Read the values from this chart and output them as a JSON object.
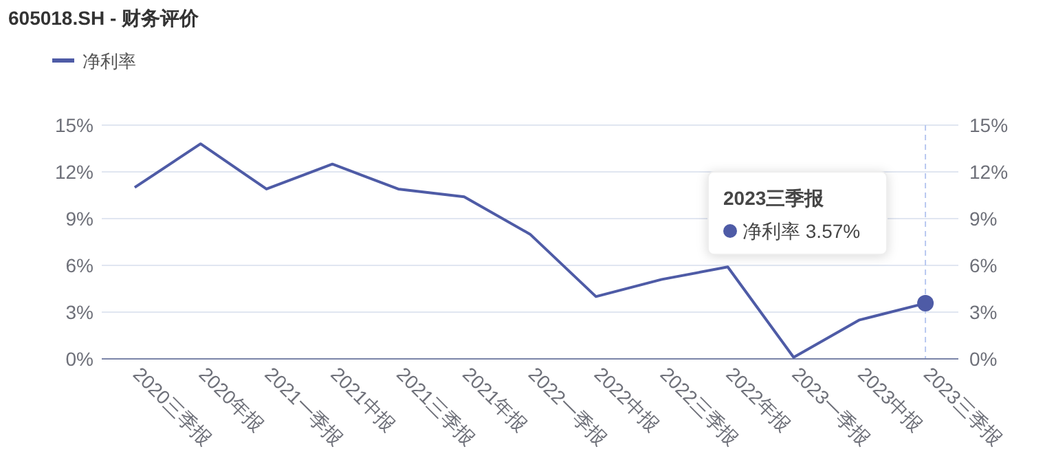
{
  "chart_data": {
    "type": "line",
    "title": "605018.SH - 财务评价",
    "categories": [
      "2020三季报",
      "2020年报",
      "2021一季报",
      "2021中报",
      "2021三季报",
      "2021年报",
      "2022一季报",
      "2022中报",
      "2022三季报",
      "2022年报",
      "2023一季报",
      "2023中报",
      "2023三季报"
    ],
    "series": [
      {
        "name": "净利率",
        "color": "#4e5ba6",
        "values": [
          11.0,
          13.8,
          10.9,
          12.5,
          10.9,
          10.4,
          8.0,
          4.0,
          5.1,
          5.9,
          0.1,
          2.5,
          3.57
        ]
      }
    ],
    "ylim": [
      0,
      15
    ],
    "yticks": [
      {
        "value": 0,
        "label": "0%"
      },
      {
        "value": 3,
        "label": "3%"
      },
      {
        "value": 6,
        "label": "6%"
      },
      {
        "value": 9,
        "label": "9%"
      },
      {
        "value": 12,
        "label": "12%"
      },
      {
        "value": 15,
        "label": "15%"
      }
    ],
    "y2lim": [
      0,
      15
    ],
    "y2ticks": [
      {
        "value": 0,
        "label": "0%"
      },
      {
        "value": 3,
        "label": "3%"
      },
      {
        "value": 6,
        "label": "6%"
      },
      {
        "value": 9,
        "label": "9%"
      },
      {
        "value": 12,
        "label": "12%"
      },
      {
        "value": 15,
        "label": "15%"
      }
    ],
    "ref_lines": [
      {
        "axis": "x",
        "value": "2023三季报",
        "color": "#b8c8f0",
        "line_style": "dashed"
      }
    ],
    "annotations": [
      "2023三季报",
      "净利率    3.57%"
    ],
    "grid": "y",
    "legend": "top left",
    "marker": "none",
    "line_style": "solid"
  }
}
